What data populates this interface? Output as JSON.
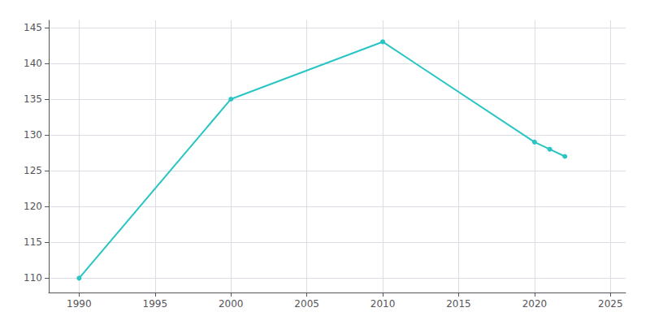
{
  "chart_data": {
    "type": "line",
    "x": [
      1990,
      2000,
      2010,
      2020,
      2021,
      2022
    ],
    "values": [
      110,
      135,
      143,
      129,
      128,
      127
    ],
    "color": "#29C5C5",
    "marker": "circle",
    "xlim": [
      1988,
      2026
    ],
    "ylim": [
      108,
      146
    ],
    "xticks": [
      1990,
      1995,
      2000,
      2005,
      2010,
      2015,
      2020,
      2025
    ],
    "yticks": [
      110,
      115,
      120,
      125,
      130,
      135,
      140,
      145
    ],
    "grid": true
  }
}
